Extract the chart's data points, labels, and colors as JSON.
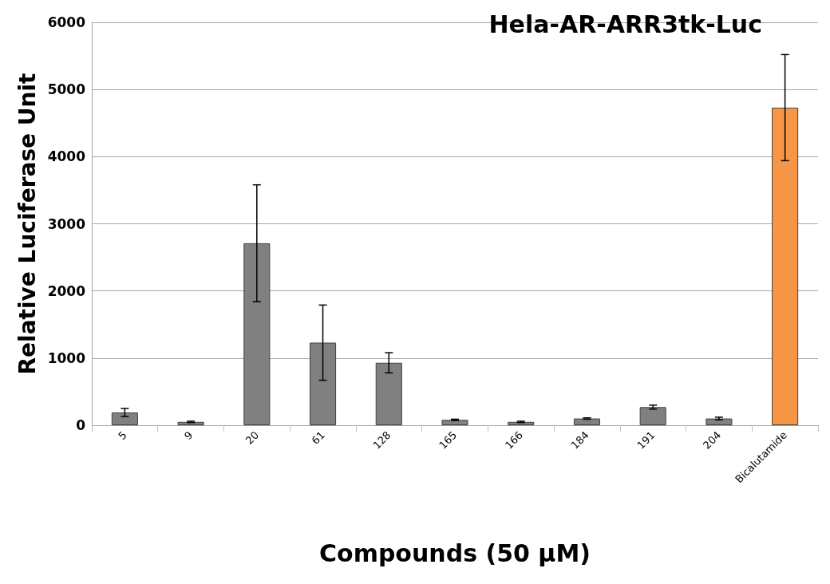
{
  "chart_data": {
    "type": "bar",
    "title": "Hela-AR-ARR3tk-Luc",
    "xlabel": "Compounds (50 μM)",
    "ylabel": "Relative Luciferase Unit",
    "categories": [
      "5",
      "9",
      "20",
      "61",
      "128",
      "165",
      "166",
      "184",
      "191",
      "204",
      "Bicalutamide"
    ],
    "values": [
      190,
      50,
      2710,
      1230,
      930,
      80,
      50,
      100,
      270,
      100,
      4730
    ],
    "errors": [
      60,
      10,
      870,
      560,
      150,
      10,
      10,
      10,
      30,
      20,
      790
    ],
    "colors": [
      "#808080",
      "#808080",
      "#808080",
      "#808080",
      "#808080",
      "#808080",
      "#808080",
      "#808080",
      "#808080",
      "#808080",
      "#f79646"
    ],
    "ylim": [
      0,
      6000
    ],
    "yticks": [
      0,
      1000,
      2000,
      3000,
      4000,
      5000,
      6000
    ],
    "grid": "y"
  }
}
